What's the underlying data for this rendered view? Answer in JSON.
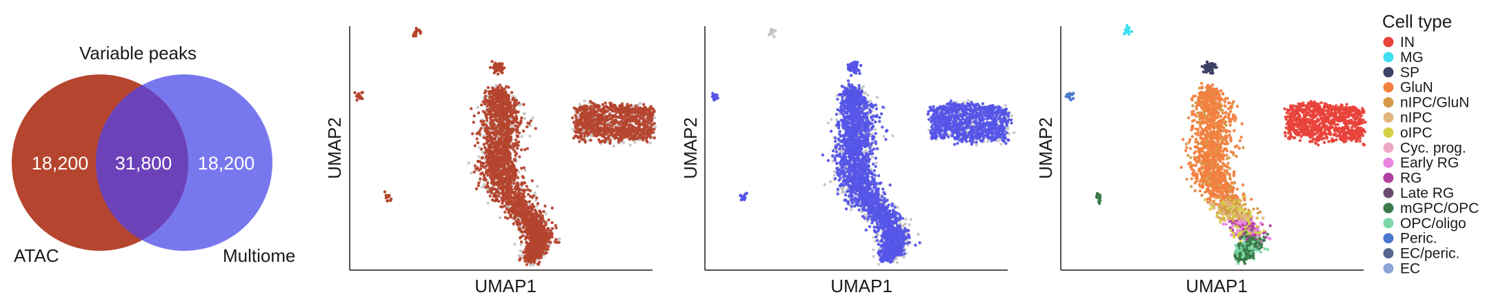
{
  "venn": {
    "title": "Variable peaks",
    "left_label": "ATAC",
    "right_label": "Multiome",
    "left_only": "18,200",
    "overlap": "31,800",
    "right_only": "18,200",
    "left_color": "#b5452e",
    "right_color": "#7878ee",
    "overlap_color": "#6c42b8"
  },
  "panels": [
    {
      "xlabel": "UMAP1",
      "ylabel": "UMAP2",
      "highlight": "ATAC",
      "highlight_color": "#b5452e",
      "background_color": "#c4c4c4"
    },
    {
      "xlabel": "UMAP1",
      "ylabel": "UMAP2",
      "highlight": "Multiome",
      "highlight_color": "#5555e8",
      "background_color": "#c4c4c4"
    },
    {
      "xlabel": "UMAP1",
      "ylabel": "UMAP2",
      "highlight": "Cell type",
      "highlight_color": "",
      "background_color": ""
    }
  ],
  "legend": {
    "title": "Cell type",
    "items": [
      {
        "label": "IN",
        "color": "#e8423a"
      },
      {
        "label": "MG",
        "color": "#3ee0f0"
      },
      {
        "label": "SP",
        "color": "#3d4166"
      },
      {
        "label": "GluN",
        "color": "#f28040"
      },
      {
        "label": "nIPC/GluN",
        "color": "#d49a4a"
      },
      {
        "label": "nIPC",
        "color": "#dfb57c"
      },
      {
        "label": "oIPC",
        "color": "#d6cf45"
      },
      {
        "label": "Cyc. prog.",
        "color": "#eba8c4"
      },
      {
        "label": "Early RG",
        "color": "#ea86e0"
      },
      {
        "label": "RG",
        "color": "#b0409f"
      },
      {
        "label": "Late RG",
        "color": "#6a4a6e"
      },
      {
        "label": "mGPC/OPC",
        "color": "#3b7a4a"
      },
      {
        "label": "OPC/oligo",
        "color": "#7ad8a6"
      },
      {
        "label": "Peric.",
        "color": "#4a78cc"
      },
      {
        "label": "EC/peric.",
        "color": "#55658f"
      },
      {
        "label": "EC",
        "color": "#8aa4d8"
      }
    ]
  },
  "chart_data": [
    {
      "type": "venn",
      "title": "Variable peaks",
      "sets": [
        "ATAC",
        "Multiome"
      ],
      "values": {
        "ATAC_only": 18200,
        "intersection": 31800,
        "Multiome_only": 18200
      }
    },
    {
      "type": "scatter",
      "xlabel": "UMAP1",
      "ylabel": "UMAP2",
      "highlighted_dataset": "ATAC"
    },
    {
      "type": "scatter",
      "xlabel": "UMAP1",
      "ylabel": "UMAP2",
      "highlighted_dataset": "Multiome"
    },
    {
      "type": "scatter",
      "xlabel": "UMAP1",
      "ylabel": "UMAP2",
      "color_by": "Cell type"
    }
  ]
}
